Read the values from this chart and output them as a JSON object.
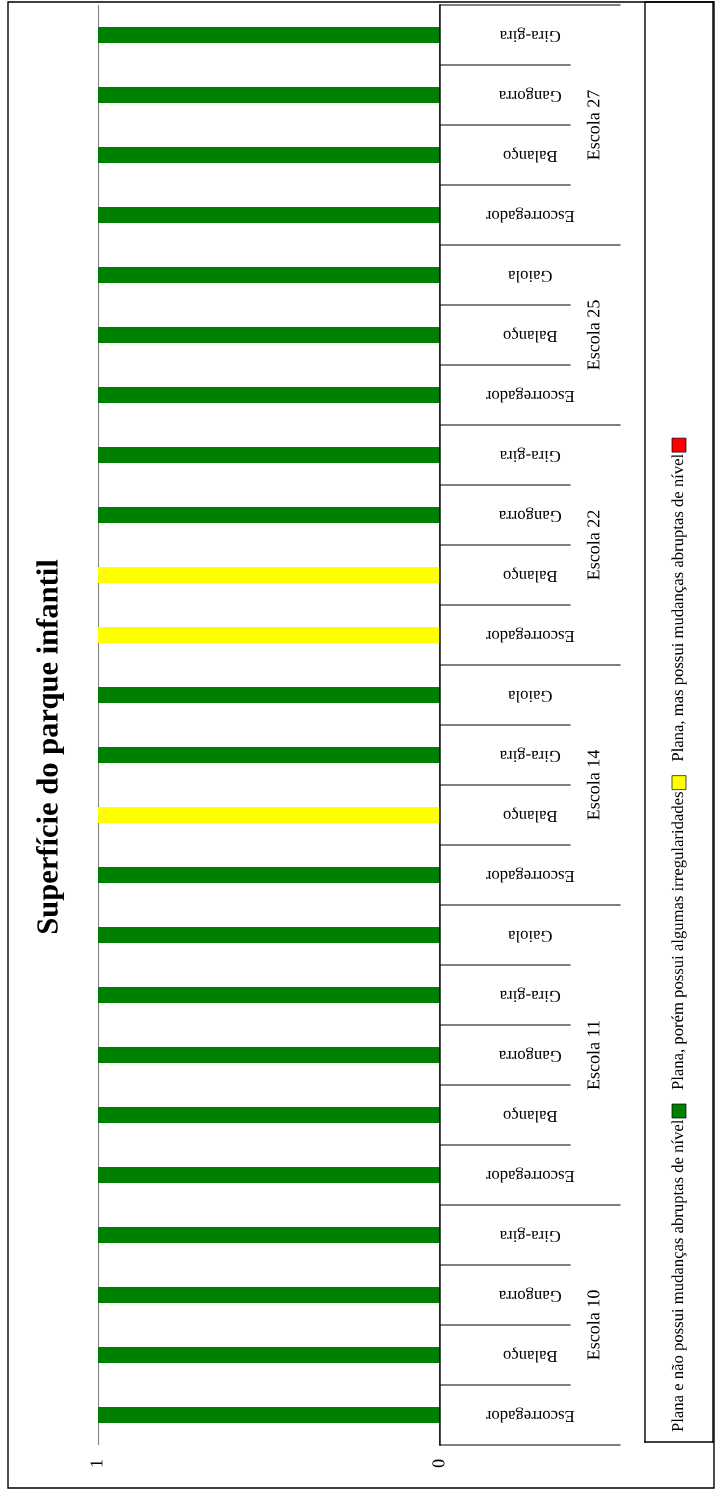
{
  "chart_data": {
    "type": "bar",
    "title": "Superfície do parque infantil",
    "orientation": "horizontal",
    "categories": [
      "Gira-gira",
      "Gangorra",
      "Balanço",
      "Escorregador",
      "Gaiola",
      "Balanço",
      "Escorregador",
      "Gira-gira",
      "Gangorra",
      "Balanço",
      "Escorregador",
      "Gaiola",
      "Gira-gira",
      "Balanço",
      "Escorregador",
      "Gaiola",
      "Gira-gira",
      "Gangorra",
      "Balanço",
      "Escorregador",
      "Gira-gira",
      "Gangorra",
      "Balanço",
      "Escorregador"
    ],
    "annotations": [
      "Escola 27",
      "Escola 25",
      "Escola 22",
      "Escola 14",
      "Escola 11",
      "Escola 10"
    ],
    "series": [
      {
        "name": "Plana e não possui mudanças abruptas de nível",
        "color": "#008000",
        "values": [
          1,
          1,
          1,
          1,
          1,
          1,
          1,
          1,
          1,
          null,
          null,
          1,
          1,
          null,
          1,
          1,
          1,
          1,
          1,
          1,
          1,
          1,
          1,
          1
        ]
      },
      {
        "name": "Plana, porém possui algumas irregularidades",
        "color": "#ffff00",
        "values": [
          null,
          null,
          null,
          null,
          null,
          null,
          null,
          null,
          null,
          1,
          1,
          null,
          null,
          1,
          null,
          null,
          null,
          null,
          null,
          null,
          null,
          null,
          null,
          null
        ]
      },
      {
        "name": "Plana, mas possui mudanças abruptas de nível",
        "color": "#ff0000",
        "values": [
          null,
          null,
          null,
          null,
          null,
          null,
          null,
          null,
          null,
          null,
          null,
          null,
          null,
          null,
          null,
          null,
          null,
          null,
          null,
          null,
          null,
          null,
          null,
          null
        ]
      }
    ],
    "xlim": [
      1,
      0
    ],
    "xticks": [
      0,
      1
    ],
    "grid": "x",
    "legend": "right"
  }
}
